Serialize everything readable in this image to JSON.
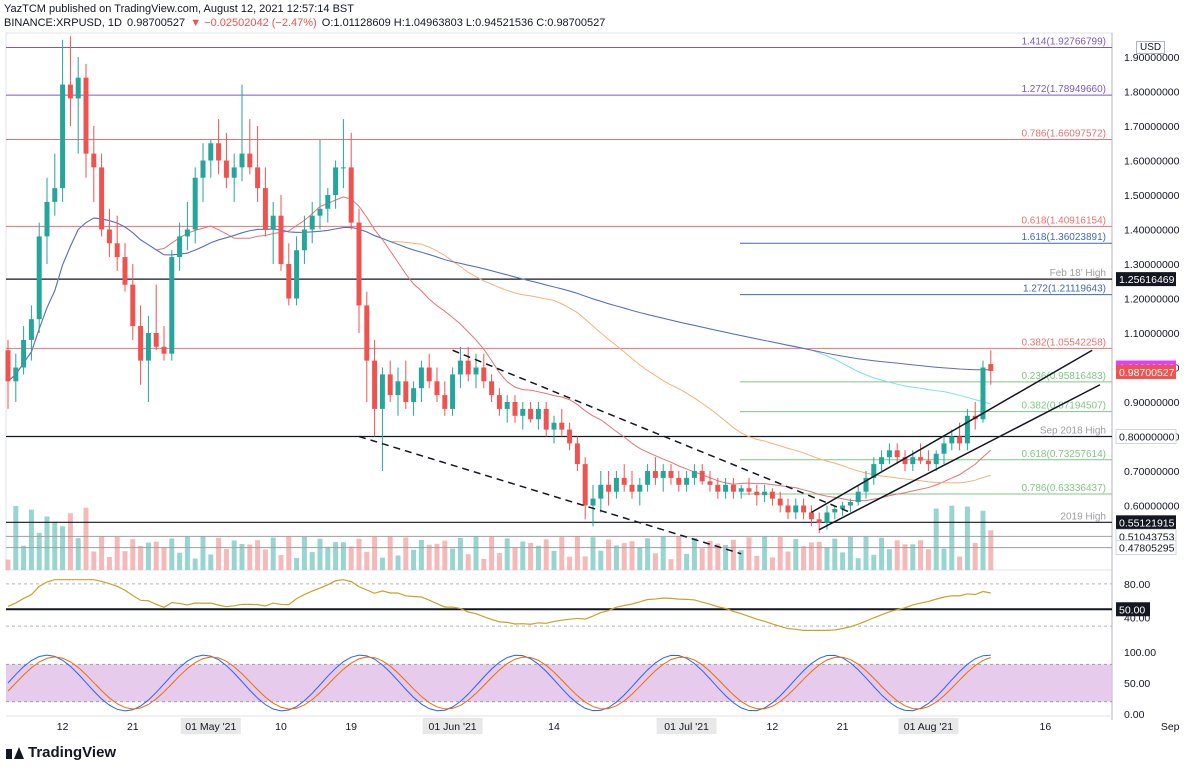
{
  "header": {
    "line1": "YazTCM published on TradingView.com, August 12, 2021 12:57:14 BST",
    "symbol": "BINANCE:XRPUSD, 1D",
    "price": "0.98700527",
    "change": "▼ −0.02502042 (−2.47%)",
    "ohlc": "O:1.01128609 H:1.04963803 L:0.94521536 C:0.98700527"
  },
  "footer": {
    "logo": "TradingView"
  },
  "chart_data": {
    "type": "candlestick",
    "currency": "USD",
    "y_axis_ticks": [
      "1.90000000",
      "1.80000000",
      "1.70000000",
      "1.60000000",
      "1.50000000",
      "1.40000000",
      "1.30000000",
      "1.20000000",
      "1.10000000",
      "1.00000000",
      "0.90000000",
      "0.80000000",
      "0.70000000",
      "0.60000000"
    ],
    "ylim": [
      0.46,
      1.95
    ],
    "x_axis_labels": [
      {
        "label": "12",
        "day": -80
      },
      {
        "label": "21",
        "day": -71
      },
      {
        "label": "01 May '21",
        "day": -61
      },
      {
        "label": "10",
        "day": -52
      },
      {
        "label": "19",
        "day": -43
      },
      {
        "label": "01 Jun '21",
        "day": -30
      },
      {
        "label": "14",
        "day": -17
      },
      {
        "label": "01 Jul '21",
        "day": 0
      },
      {
        "label": "12",
        "day": 11
      },
      {
        "label": "21",
        "day": 20
      },
      {
        "label": "01 Aug '21",
        "day": 31
      },
      {
        "label": "16",
        "day": 46
      },
      {
        "label": "Sep",
        "day": 62
      }
    ],
    "candles_note": "daily OHLC, day index 0 = 01 Jul '21",
    "candles": [
      [
        -87,
        1.05,
        1.08,
        0.88,
        0.96
      ],
      [
        -86,
        0.96,
        1.04,
        0.9,
        1.0
      ],
      [
        -85,
        1.0,
        1.12,
        0.98,
        1.08
      ],
      [
        -84,
        1.08,
        1.18,
        1.02,
        1.14
      ],
      [
        -83,
        1.14,
        1.42,
        1.1,
        1.38
      ],
      [
        -82,
        1.38,
        1.55,
        1.3,
        1.48
      ],
      [
        -81,
        1.48,
        1.62,
        1.44,
        1.52
      ],
      [
        -80,
        1.52,
        1.95,
        1.48,
        1.82
      ],
      [
        -79,
        1.82,
        1.96,
        1.7,
        1.78
      ],
      [
        -78,
        1.78,
        1.9,
        1.62,
        1.84
      ],
      [
        -77,
        1.84,
        1.88,
        1.55,
        1.62
      ],
      [
        -76,
        1.62,
        1.7,
        1.48,
        1.58
      ],
      [
        -75,
        1.58,
        1.62,
        1.38,
        1.4
      ],
      [
        -74,
        1.4,
        1.46,
        1.32,
        1.36
      ],
      [
        -73,
        1.36,
        1.44,
        1.28,
        1.32
      ],
      [
        -72,
        1.32,
        1.36,
        1.22,
        1.24
      ],
      [
        -71,
        1.24,
        1.3,
        1.08,
        1.12
      ],
      [
        -70,
        1.12,
        1.18,
        0.95,
        1.02
      ],
      [
        -69,
        1.02,
        1.15,
        0.9,
        1.1
      ],
      [
        -68,
        1.1,
        1.24,
        1.05,
        1.06
      ],
      [
        -67,
        1.06,
        1.12,
        1.02,
        1.04
      ],
      [
        -66,
        1.04,
        1.34,
        1.02,
        1.32
      ],
      [
        -65,
        1.32,
        1.42,
        1.28,
        1.38
      ],
      [
        -64,
        1.38,
        1.48,
        1.34,
        1.4
      ],
      [
        -63,
        1.4,
        1.58,
        1.36,
        1.55
      ],
      [
        -62,
        1.55,
        1.65,
        1.48,
        1.6
      ],
      [
        -61,
        1.6,
        1.66,
        1.55,
        1.65
      ],
      [
        -60,
        1.65,
        1.72,
        1.56,
        1.6
      ],
      [
        -59,
        1.6,
        1.68,
        1.52,
        1.55
      ],
      [
        -58,
        1.55,
        1.62,
        1.48,
        1.58
      ],
      [
        -57,
        1.58,
        1.82,
        1.54,
        1.62
      ],
      [
        -56,
        1.62,
        1.72,
        1.56,
        1.58
      ],
      [
        -55,
        1.58,
        1.7,
        1.48,
        1.52
      ],
      [
        -54,
        1.52,
        1.58,
        1.38,
        1.4
      ],
      [
        -53,
        1.4,
        1.48,
        1.3,
        1.44
      ],
      [
        -52,
        1.44,
        1.5,
        1.28,
        1.3
      ],
      [
        -51,
        1.3,
        1.36,
        1.18,
        1.2
      ],
      [
        -50,
        1.2,
        1.38,
        1.18,
        1.34
      ],
      [
        -49,
        1.34,
        1.44,
        1.3,
        1.4
      ],
      [
        -48,
        1.4,
        1.48,
        1.36,
        1.44
      ],
      [
        -47,
        1.44,
        1.66,
        1.4,
        1.46
      ],
      [
        -46,
        1.46,
        1.52,
        1.42,
        1.5
      ],
      [
        -45,
        1.5,
        1.6,
        1.46,
        1.58
      ],
      [
        -44,
        1.58,
        1.72,
        1.52,
        1.58
      ],
      [
        -43,
        1.58,
        1.68,
        1.4,
        1.42
      ],
      [
        -42,
        1.42,
        1.46,
        1.1,
        1.18
      ],
      [
        -41,
        1.18,
        1.22,
        0.9,
        1.02
      ],
      [
        -40,
        1.02,
        1.08,
        0.8,
        0.88
      ],
      [
        -39,
        0.88,
        1.0,
        0.7,
        0.98
      ],
      [
        -38,
        0.98,
        1.02,
        0.9,
        0.92
      ],
      [
        -37,
        0.92,
        1.0,
        0.86,
        0.96
      ],
      [
        -36,
        0.96,
        1.02,
        0.88,
        0.9
      ],
      [
        -35,
        0.9,
        0.96,
        0.86,
        0.94
      ],
      [
        -34,
        0.94,
        1.02,
        0.9,
        1.0
      ],
      [
        -33,
        1.0,
        1.04,
        0.94,
        0.96
      ],
      [
        -32,
        0.96,
        1.0,
        0.9,
        0.92
      ],
      [
        -31,
        0.92,
        0.96,
        0.86,
        0.88
      ],
      [
        -30,
        0.88,
        1.0,
        0.86,
        0.98
      ],
      [
        -29,
        0.98,
        1.06,
        0.94,
        1.02
      ],
      [
        -28,
        1.02,
        1.06,
        0.96,
        0.98
      ],
      [
        -27,
        0.98,
        1.04,
        0.94,
        1.0
      ],
      [
        -26,
        1.0,
        1.04,
        0.94,
        0.96
      ],
      [
        -25,
        0.96,
        0.98,
        0.9,
        0.92
      ],
      [
        -24,
        0.92,
        0.94,
        0.86,
        0.88
      ],
      [
        -23,
        0.88,
        0.92,
        0.84,
        0.9
      ],
      [
        -22,
        0.9,
        0.92,
        0.84,
        0.86
      ],
      [
        -21,
        0.86,
        0.9,
        0.82,
        0.88
      ],
      [
        -20,
        0.88,
        0.9,
        0.84,
        0.85
      ],
      [
        -19,
        0.85,
        0.9,
        0.82,
        0.88
      ],
      [
        -18,
        0.88,
        0.9,
        0.8,
        0.82
      ],
      [
        -17,
        0.82,
        0.86,
        0.78,
        0.84
      ],
      [
        -16,
        0.84,
        0.88,
        0.8,
        0.82
      ],
      [
        -15,
        0.82,
        0.84,
        0.76,
        0.78
      ],
      [
        -14,
        0.78,
        0.8,
        0.7,
        0.72
      ],
      [
        -13,
        0.72,
        0.74,
        0.56,
        0.6
      ],
      [
        -12,
        0.6,
        0.66,
        0.54,
        0.62
      ],
      [
        -11,
        0.62,
        0.7,
        0.58,
        0.66
      ],
      [
        -10,
        0.66,
        0.7,
        0.6,
        0.64
      ],
      [
        -9,
        0.64,
        0.7,
        0.62,
        0.68
      ],
      [
        -8,
        0.68,
        0.72,
        0.64,
        0.66
      ],
      [
        -7,
        0.66,
        0.7,
        0.62,
        0.64
      ],
      [
        -6,
        0.64,
        0.68,
        0.6,
        0.66
      ],
      [
        -5,
        0.66,
        0.72,
        0.64,
        0.7
      ],
      [
        -4,
        0.7,
        0.74,
        0.66,
        0.68
      ],
      [
        -3,
        0.68,
        0.72,
        0.64,
        0.7
      ],
      [
        -2,
        0.7,
        0.72,
        0.66,
        0.68
      ],
      [
        -1,
        0.68,
        0.7,
        0.64,
        0.66
      ],
      [
        0,
        0.66,
        0.7,
        0.64,
        0.68
      ],
      [
        1,
        0.68,
        0.72,
        0.66,
        0.7
      ],
      [
        2,
        0.7,
        0.72,
        0.66,
        0.67
      ],
      [
        3,
        0.67,
        0.7,
        0.64,
        0.66
      ],
      [
        4,
        0.66,
        0.68,
        0.62,
        0.64
      ],
      [
        5,
        0.64,
        0.68,
        0.62,
        0.66
      ],
      [
        6,
        0.66,
        0.68,
        0.62,
        0.64
      ],
      [
        7,
        0.64,
        0.66,
        0.62,
        0.65
      ],
      [
        8,
        0.65,
        0.68,
        0.63,
        0.64
      ],
      [
        9,
        0.64,
        0.66,
        0.6,
        0.63
      ],
      [
        10,
        0.63,
        0.66,
        0.61,
        0.64
      ],
      [
        11,
        0.64,
        0.65,
        0.6,
        0.62
      ],
      [
        12,
        0.62,
        0.64,
        0.58,
        0.6
      ],
      [
        13,
        0.6,
        0.62,
        0.56,
        0.58
      ],
      [
        14,
        0.58,
        0.62,
        0.56,
        0.6
      ],
      [
        15,
        0.6,
        0.62,
        0.56,
        0.58
      ],
      [
        16,
        0.58,
        0.6,
        0.54,
        0.56
      ],
      [
        17,
        0.56,
        0.58,
        0.52,
        0.55
      ],
      [
        18,
        0.55,
        0.6,
        0.53,
        0.58
      ],
      [
        19,
        0.58,
        0.6,
        0.56,
        0.59
      ],
      [
        20,
        0.59,
        0.61,
        0.57,
        0.6
      ],
      [
        21,
        0.6,
        0.62,
        0.58,
        0.61
      ],
      [
        22,
        0.61,
        0.66,
        0.6,
        0.64
      ],
      [
        23,
        0.64,
        0.7,
        0.62,
        0.68
      ],
      [
        24,
        0.68,
        0.74,
        0.66,
        0.72
      ],
      [
        25,
        0.72,
        0.76,
        0.7,
        0.74
      ],
      [
        26,
        0.74,
        0.78,
        0.72,
        0.76
      ],
      [
        27,
        0.76,
        0.78,
        0.72,
        0.74
      ],
      [
        28,
        0.74,
        0.76,
        0.7,
        0.72
      ],
      [
        29,
        0.72,
        0.76,
        0.7,
        0.74
      ],
      [
        30,
        0.74,
        0.78,
        0.72,
        0.73
      ],
      [
        31,
        0.73,
        0.76,
        0.7,
        0.72
      ],
      [
        32,
        0.72,
        0.76,
        0.7,
        0.75
      ],
      [
        33,
        0.75,
        0.8,
        0.72,
        0.78
      ],
      [
        34,
        0.78,
        0.82,
        0.76,
        0.8
      ],
      [
        35,
        0.8,
        0.84,
        0.76,
        0.78
      ],
      [
        36,
        0.78,
        0.88,
        0.76,
        0.86
      ],
      [
        37,
        0.86,
        0.9,
        0.82,
        0.85
      ],
      [
        38,
        0.85,
        1.02,
        0.84,
        1.0
      ],
      [
        39,
        1.01,
        1.05,
        0.95,
        0.99
      ]
    ],
    "volume_note": "relative volume, 0-1",
    "horizontal_levels": [
      {
        "value": 1.92766799,
        "label": "1.414(1.92766799)",
        "color": "#7e57c2"
      },
      {
        "value": 1.7894966,
        "label": "1.272(1.78949660)",
        "color": "#7e57c2"
      },
      {
        "value": 1.66097572,
        "label": "0.786(1.66097572)",
        "color": "#e57373"
      },
      {
        "value": 1.40916154,
        "label": "0.618(1.40916154)",
        "color": "#e57373"
      },
      {
        "value": 1.36023891,
        "label": "1.618(1.36023891)",
        "color": "#3f6ab0"
      },
      {
        "value": 1.25616469,
        "label": "",
        "color": "#131722"
      },
      {
        "value": 1.21119643,
        "label": "1.272(1.21119643)",
        "color": "#3f6ab0"
      },
      {
        "value": 1.05542258,
        "label": "0.382(1.05542258)",
        "color": "#e57373"
      },
      {
        "value": 0.95816483,
        "label": "0.236(0.95816483)",
        "color": "#81c784"
      },
      {
        "value": 0.87194507,
        "label": "0.382(0.87194507)",
        "color": "#81c784"
      },
      {
        "value": 0.8,
        "label": "",
        "color": "#131722"
      },
      {
        "value": 0.73257614,
        "label": "0.618(0.73257614)",
        "color": "#81c784"
      },
      {
        "value": 0.63336437,
        "label": "0.786(0.63336437)",
        "color": "#81c784"
      },
      {
        "value": 0.55121915,
        "label": "",
        "color": "#131722"
      },
      {
        "value": 0.51043753,
        "label": "",
        "color": "#9e9e9e"
      },
      {
        "value": 0.47805295,
        "label": "",
        "color": "#9e9e9e"
      }
    ],
    "level_notes": [
      {
        "value": 1.25616469,
        "label": "Feb 18' High"
      },
      {
        "value": 0.8,
        "label": "Sep 2018 High"
      },
      {
        "value": 0.55121915,
        "label": "2019 High"
      }
    ],
    "price_badges": [
      {
        "value": 1.25616469,
        "text": "1.25616469",
        "bg": "#131722",
        "fg": "#ffffff"
      },
      {
        "value": 1.0,
        "text": "1.00000000",
        "bg": "#e040fb",
        "fg": "#ffffff"
      },
      {
        "value": 0.98700527,
        "text": "0.98700527",
        "bg": "#ef5350",
        "fg": "#ffffff"
      },
      {
        "value": 0.8,
        "text": "0.80000000",
        "bg": "#ffffff",
        "fg": "#131722"
      },
      {
        "value": 0.55121915,
        "text": "0.55121915",
        "bg": "#131722",
        "fg": "#ffffff"
      },
      {
        "value": 0.51043753,
        "text": "0.51043753",
        "bg": "#ffffff",
        "fg": "#131722"
      },
      {
        "value": 0.47805295,
        "text": "0.47805295",
        "bg": "#ffffff",
        "fg": "#131722"
      }
    ],
    "trendlines": [
      {
        "from": [
          -30,
          1.05
        ],
        "to": [
          21,
          0.58
        ],
        "style": "dashed"
      },
      {
        "from": [
          -42,
          0.8
        ],
        "to": [
          7,
          0.46
        ],
        "style": "dashed"
      },
      {
        "from": [
          16,
          0.58
        ],
        "to": [
          52,
          1.05
        ],
        "style": "solid"
      },
      {
        "from": [
          17,
          0.53
        ],
        "to": [
          53,
          0.95
        ],
        "style": "solid"
      }
    ],
    "rsi": {
      "ticks": [
        "80.00",
        "40.00"
      ],
      "badge": "50.00",
      "series_note": "RSI line values"
    },
    "stoch": {
      "ticks": [
        "100.00",
        "50.00",
        "0.00"
      ]
    },
    "colors": {
      "up": "#26a69a",
      "down": "#ef5350",
      "rsi": "#c9a227",
      "stochK": "#2962ff",
      "stochD": "#ef6c00",
      "stochBand": "#e1bee7"
    }
  }
}
